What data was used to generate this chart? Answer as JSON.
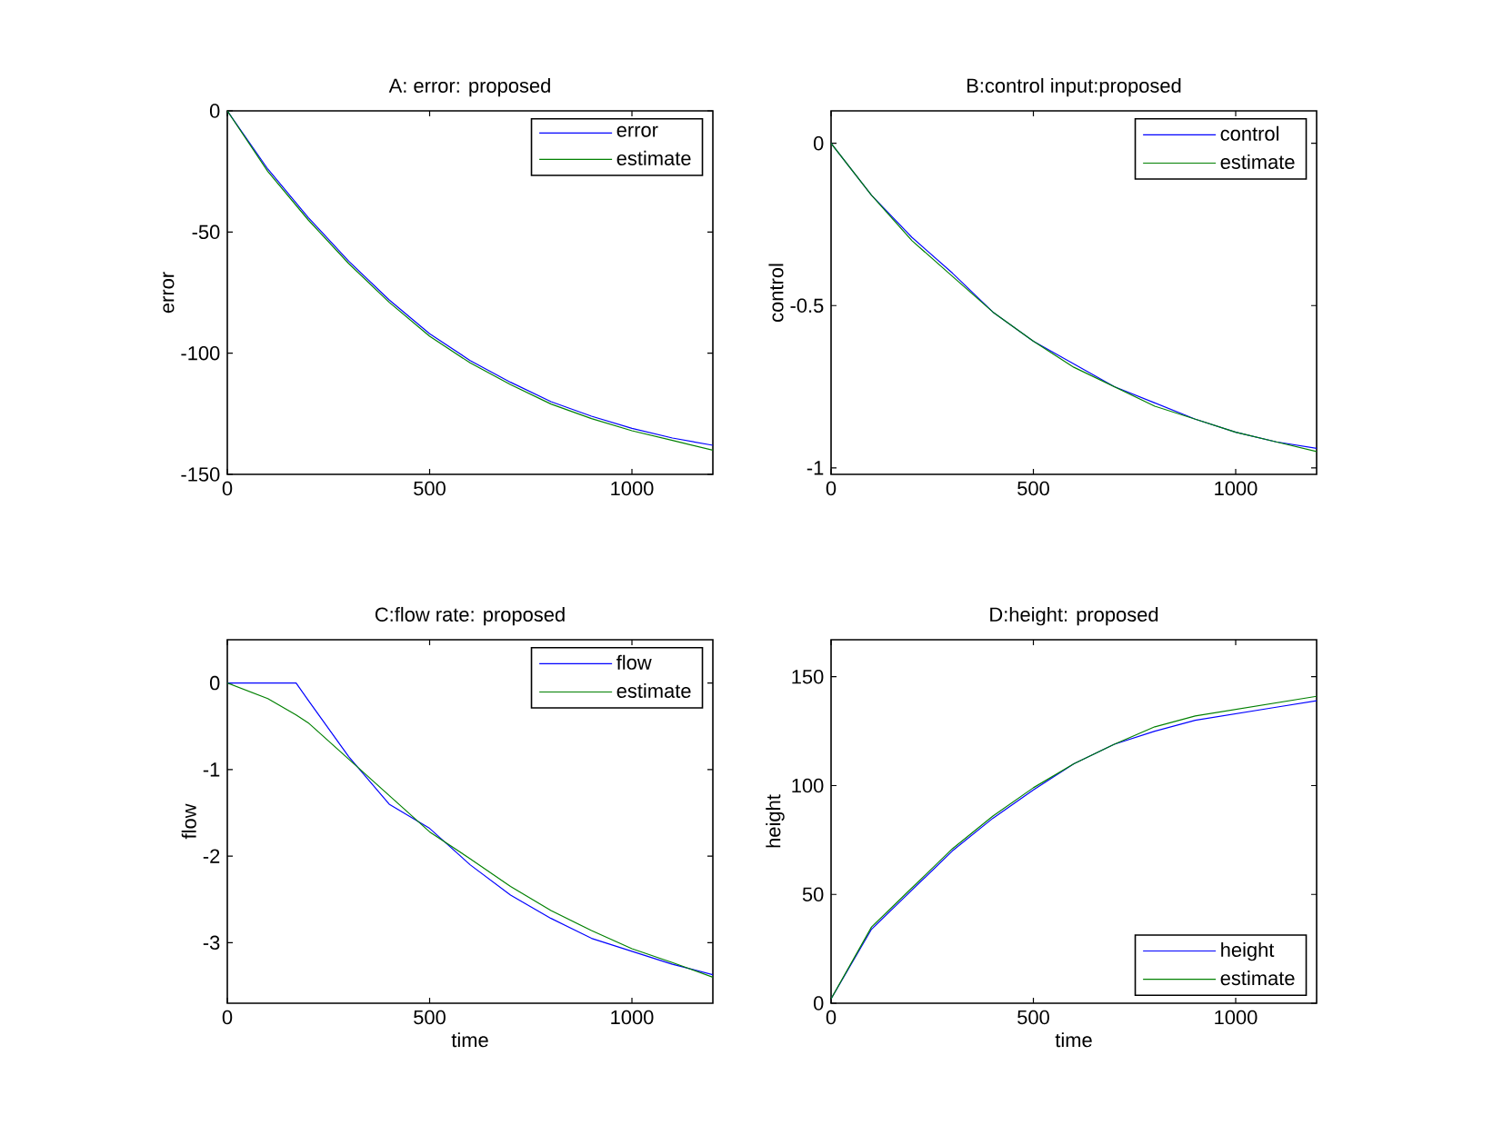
{
  "chart_data": [
    {
      "type": "line",
      "title": "A: error: proposed",
      "ylabel": "error",
      "x": [
        0,
        100,
        200,
        300,
        400,
        500,
        600,
        700,
        800,
        900,
        1000,
        1100,
        1200
      ],
      "xlim": [
        0,
        1200
      ],
      "ylim": [
        -150,
        0
      ],
      "xticks": [
        0,
        500,
        1000
      ],
      "yticks": [
        -150,
        -100,
        -50,
        0
      ],
      "legend": "top right",
      "series": [
        {
          "name": "error",
          "color": "#0000ff",
          "values": [
            0,
            -24,
            -44,
            -62,
            -78,
            -92,
            -103,
            -112,
            -120,
            -126,
            -131,
            -135,
            -138
          ]
        },
        {
          "name": "estimate",
          "color": "#008000",
          "values": [
            0,
            -25,
            -45,
            -63,
            -79,
            -93,
            -104,
            -113,
            -121,
            -127,
            -132,
            -136,
            -140
          ]
        }
      ]
    },
    {
      "type": "line",
      "title": "B:control input:proposed",
      "ylabel": "control",
      "x": [
        0,
        100,
        200,
        300,
        400,
        500,
        600,
        700,
        800,
        900,
        1000,
        1100,
        1200
      ],
      "xlim": [
        0,
        1200
      ],
      "ylim": [
        -1.02,
        0.1
      ],
      "xticks": [
        0,
        500,
        1000
      ],
      "yticks": [
        -1,
        -0.5,
        0
      ],
      "legend": "top right",
      "series": [
        {
          "name": "control",
          "color": "#0000ff",
          "values": [
            0,
            -0.16,
            -0.29,
            -0.4,
            -0.52,
            -0.61,
            -0.68,
            -0.75,
            -0.8,
            -0.85,
            -0.89,
            -0.92,
            -0.94
          ]
        },
        {
          "name": "estimate",
          "color": "#008000",
          "values": [
            0,
            -0.16,
            -0.3,
            -0.41,
            -0.52,
            -0.61,
            -0.69,
            -0.75,
            -0.81,
            -0.85,
            -0.89,
            -0.92,
            -0.95
          ]
        }
      ]
    },
    {
      "type": "line",
      "title": "C:flow rate: proposed",
      "xlabel": "time",
      "ylabel": "flow",
      "x": [
        0,
        100,
        170,
        200,
        300,
        400,
        500,
        600,
        700,
        800,
        900,
        1000,
        1100,
        1200
      ],
      "xlim": [
        0,
        1200
      ],
      "ylim": [
        -3.7,
        0.5
      ],
      "xticks": [
        0,
        500,
        1000
      ],
      "yticks": [
        -3,
        -2,
        -1,
        0
      ],
      "legend": "top right",
      "series": [
        {
          "name": "flow",
          "color": "#0000ff",
          "values": [
            0,
            0,
            0,
            -0.2,
            -0.85,
            -1.4,
            -1.68,
            -2.1,
            -2.45,
            -2.72,
            -2.95,
            -3.1,
            -3.25,
            -3.37
          ]
        },
        {
          "name": "estimate",
          "color": "#008000",
          "values": [
            0,
            -0.18,
            -0.37,
            -0.46,
            -0.88,
            -1.3,
            -1.72,
            -2.03,
            -2.35,
            -2.63,
            -2.86,
            -3.07,
            -3.23,
            -3.4
          ]
        }
      ]
    },
    {
      "type": "line",
      "title": "D:height: proposed",
      "xlabel": "time",
      "ylabel": "height",
      "x": [
        0,
        100,
        200,
        300,
        400,
        500,
        600,
        700,
        800,
        900,
        1000,
        1100,
        1200
      ],
      "xlim": [
        0,
        1200
      ],
      "ylim": [
        0,
        167
      ],
      "xticks": [
        0,
        500,
        1000
      ],
      "yticks": [
        0,
        50,
        100,
        150
      ],
      "legend": "bottom right",
      "series": [
        {
          "name": "height",
          "color": "#0000ff",
          "values": [
            2,
            34,
            52,
            70,
            85,
            98,
            110,
            119,
            125,
            130,
            133,
            136,
            139
          ]
        },
        {
          "name": "estimate",
          "color": "#008000",
          "values": [
            2,
            35,
            53,
            71,
            86,
            99,
            110,
            119,
            127,
            132,
            135,
            138,
            141
          ]
        }
      ]
    }
  ]
}
